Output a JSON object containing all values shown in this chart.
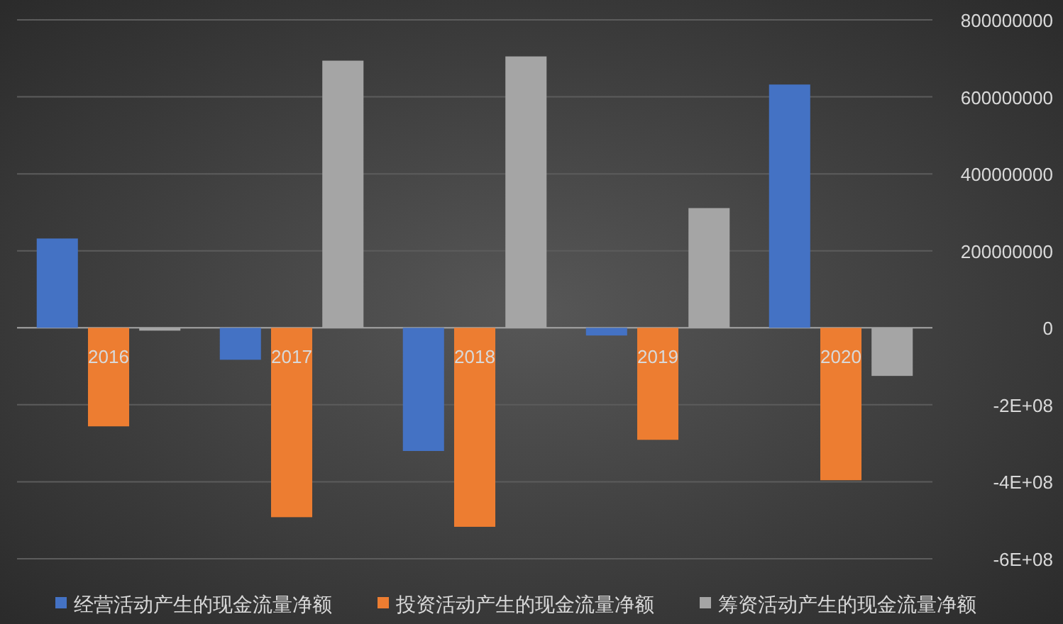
{
  "chart_data": {
    "type": "bar",
    "categories": [
      "2016",
      "2017",
      "2018",
      "2019",
      "2020"
    ],
    "series": [
      {
        "name": "经营活动产生的现金流量净额",
        "color": "#4472c4",
        "values": [
          232000000,
          -83000000,
          -320000000,
          -20000000,
          632000000
        ]
      },
      {
        "name": "投资活动产生的现金流量净额",
        "color": "#ed7d31",
        "values": [
          -256000000,
          -492000000,
          -517000000,
          -291000000,
          -396000000
        ]
      },
      {
        "name": "筹资活动产生的现金流量净额",
        "color": "#a5a5a5",
        "values": [
          -3000000,
          694000000,
          705000000,
          311000000,
          -125000000
        ]
      }
    ],
    "ylim": [
      -600000000,
      800000000
    ],
    "yticks": [
      {
        "value": 800000000,
        "label": "800000000"
      },
      {
        "value": 600000000,
        "label": "600000000"
      },
      {
        "value": 400000000,
        "label": "400000000"
      },
      {
        "value": 200000000,
        "label": "200000000"
      },
      0,
      {
        "value": -200000000,
        "label": "-2E+08"
      },
      {
        "value": -400000000,
        "label": "-4E+08"
      },
      {
        "value": -600000000,
        "label": "-6E+08"
      }
    ],
    "grid": "y",
    "legend": "bottom"
  }
}
